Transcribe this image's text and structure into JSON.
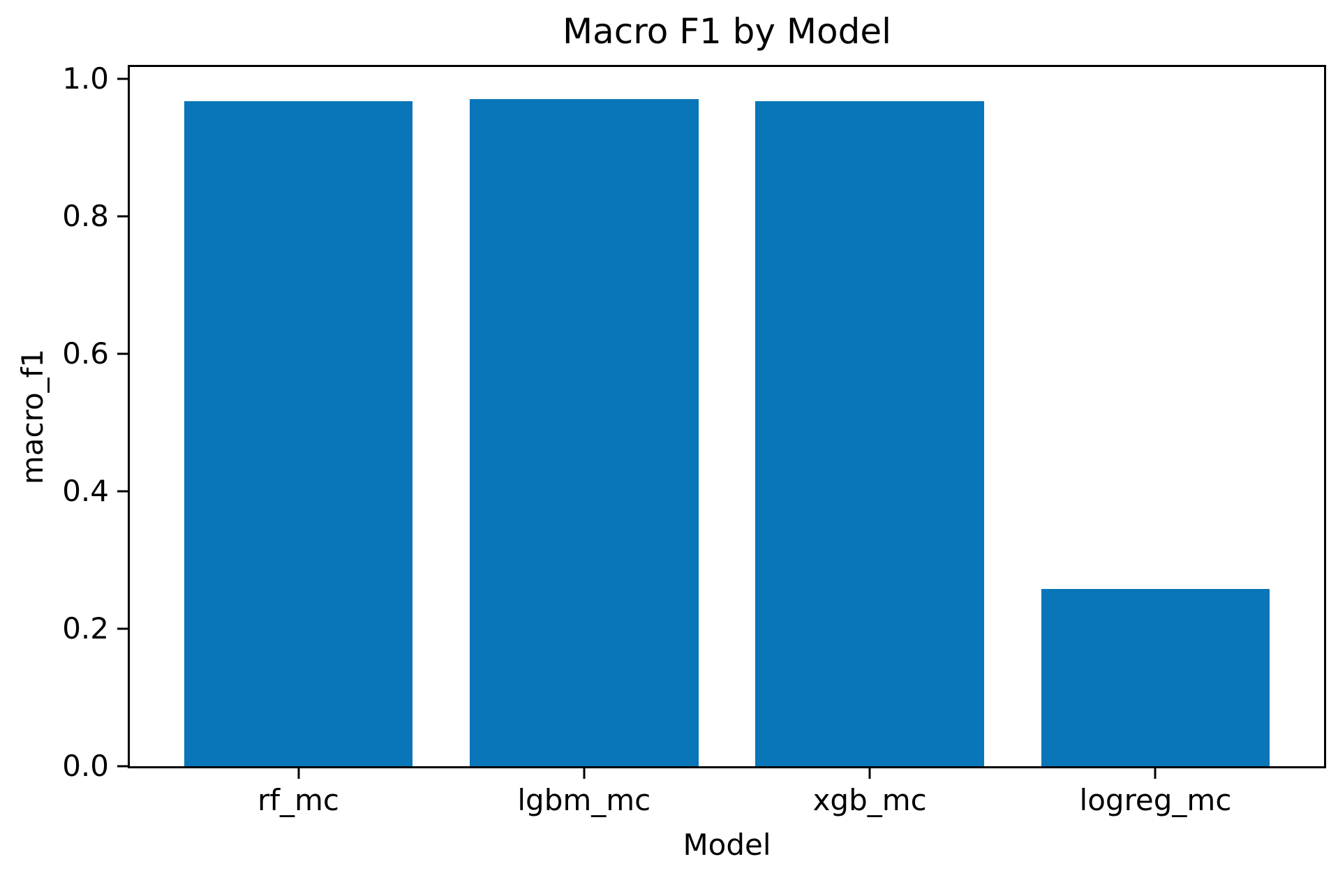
{
  "chart_data": {
    "type": "bar",
    "title": "Macro F1 by Model",
    "xlabel": "Model",
    "ylabel": "macro_f1",
    "categories": [
      "rf_mc",
      "lgbm_mc",
      "xgb_mc",
      "logreg_mc"
    ],
    "values": [
      0.967,
      0.97,
      0.967,
      0.258
    ],
    "yticks": [
      {
        "label": "0.0",
        "value": 0.0
      },
      {
        "label": "0.2",
        "value": 0.2
      },
      {
        "label": "0.4",
        "value": 0.4
      },
      {
        "label": "0.6",
        "value": 0.6
      },
      {
        "label": "0.8",
        "value": 0.8
      },
      {
        "label": "1.0",
        "value": 1.0
      }
    ],
    "ylim": [
      0,
      1.017
    ],
    "xlim": [
      -0.59,
      3.59
    ],
    "bar_width": 0.8,
    "bar_color": "#0876b8",
    "axis_color": "#000000",
    "background_color": "#ffffff",
    "grid": false,
    "legend": false
  }
}
